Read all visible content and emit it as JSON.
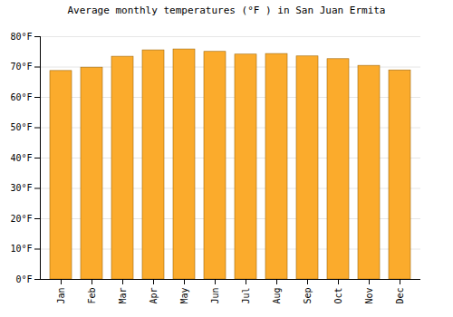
{
  "chart_data": {
    "type": "bar",
    "title": "Average monthly temperatures (°F ) in San Juan Ermita",
    "categories": [
      "Jan",
      "Feb",
      "Mar",
      "Apr",
      "May",
      "Jun",
      "Jul",
      "Aug",
      "Sep",
      "Oct",
      "Nov",
      "Dec"
    ],
    "values": [
      68.7,
      69.8,
      73.4,
      75.5,
      75.8,
      75.0,
      74.1,
      74.3,
      73.5,
      72.6,
      70.4,
      68.9
    ],
    "color": "#fbab2c",
    "ylim": [
      0,
      80
    ],
    "yticks": [
      {
        "value": 0,
        "label": "0°F"
      },
      {
        "value": 10,
        "label": "10°F"
      },
      {
        "value": 20,
        "label": "20°F"
      },
      {
        "value": 30,
        "label": "30°F"
      },
      {
        "value": 40,
        "label": "40°F"
      },
      {
        "value": 50,
        "label": "50°F"
      },
      {
        "value": 60,
        "label": "60°F"
      },
      {
        "value": 70,
        "label": "70°F"
      },
      {
        "value": 80,
        "label": "80°F"
      }
    ],
    "grid": true
  }
}
